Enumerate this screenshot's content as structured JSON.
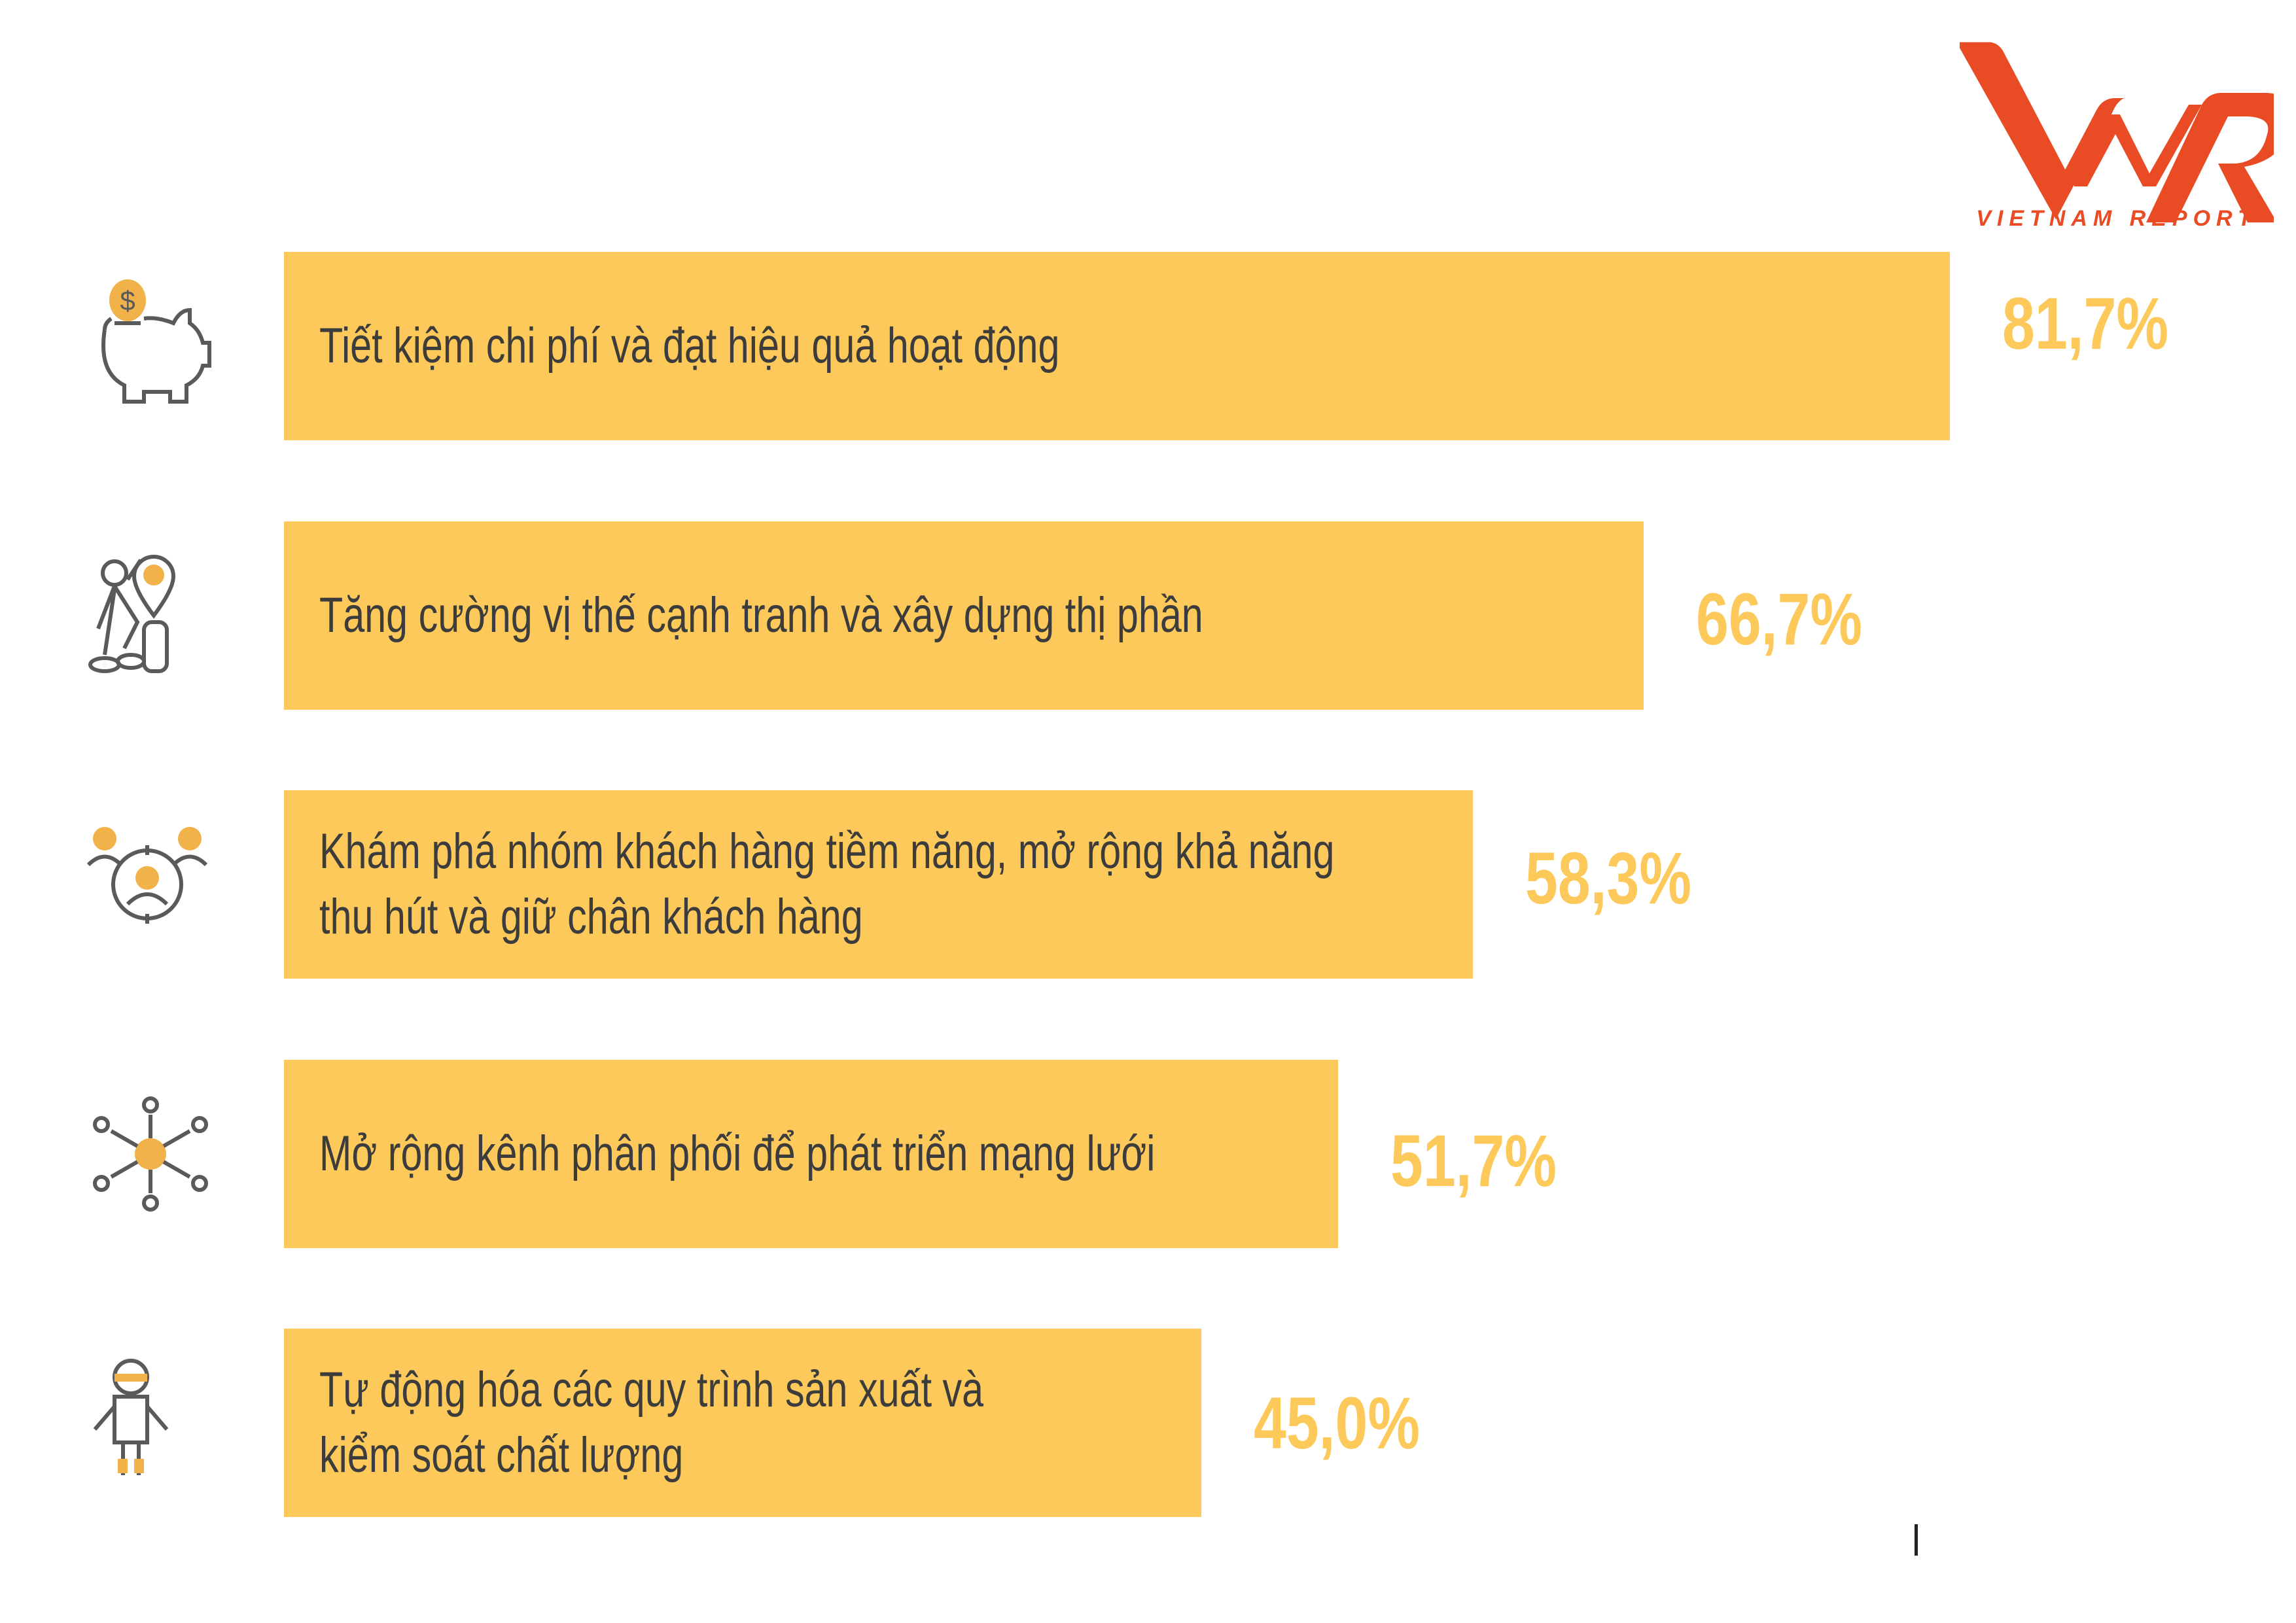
{
  "logo": {
    "text": "VIETNAM REPORT",
    "color": "#e94b25"
  },
  "colors": {
    "bar": "#fdc95a",
    "value_text": "#fcc95a",
    "label_text": "#3c3c3c",
    "icon_stroke": "#5a5a5a",
    "icon_accent": "#f2b24a"
  },
  "chart_data": {
    "type": "bar",
    "orientation": "horizontal",
    "categories": [
      "Tiết kiệm chi phí và đạt hiệu quả hoạt động",
      "Tăng cường vị thế cạnh tranh và xây dựng thị phần",
      "Khám phá nhóm khách hàng tiềm năng, mở rộng khả năng thu hút và giữ chân khách hàng",
      "Mở rộng kênh phân phối để phát triển mạng lưới",
      "Tự động hóa các quy trình sản xuất và kiểm soát chất lượng"
    ],
    "label_lines": [
      [
        "Tiết kiệm chi phí và đạt hiệu quả hoạt động"
      ],
      [
        "Tăng cường vị thế cạnh tranh và xây dựng thị phần"
      ],
      [
        "Khám phá nhóm khách hàng tiềm năng, mở rộng khả năng",
        "thu hút và giữ chân khách hàng"
      ],
      [
        "Mở rộng kênh phân phối để phát triển mạng lưới"
      ],
      [
        "Tự động hóa các quy trình sản xuất và",
        "kiểm soát chất lượng"
      ]
    ],
    "values": [
      81.7,
      66.7,
      58.3,
      51.7,
      45.0
    ],
    "value_labels": [
      "81,7%",
      "66,7%",
      "58,3%",
      "51,7%",
      "45,0%"
    ],
    "icons": [
      "piggy-bank-icon",
      "businessman-growth-icon",
      "target-customers-icon",
      "network-distribution-icon",
      "robot-automation-icon"
    ],
    "unit": "%",
    "xlim": [
      0,
      100
    ],
    "grid": false,
    "legend": "none"
  }
}
